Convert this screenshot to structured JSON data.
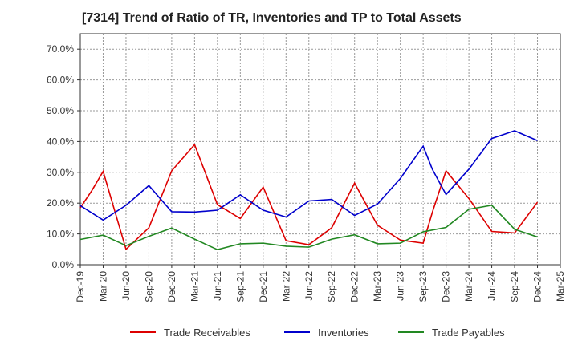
{
  "chart_data": {
    "type": "line",
    "title": "[7314]  Trend of Ratio of TR, Inventories and TP to Total Assets",
    "xlabel": "",
    "ylabel": "",
    "categories": [
      "Dec-19",
      "Mar-20",
      "Jun-20",
      "Sep-20",
      "Dec-20",
      "Mar-21",
      "Jun-21",
      "Sep-21",
      "Dec-21",
      "Mar-22",
      "Jun-22",
      "Sep-22",
      "Dec-22",
      "Mar-23",
      "Jun-23",
      "Sep-23",
      "Dec-23",
      "Mar-24",
      "Jun-24",
      "Sep-24",
      "Dec-24",
      "Mar-25"
    ],
    "ylim": [
      0,
      75
    ],
    "yticks": [
      0,
      10,
      20,
      30,
      40,
      50,
      60,
      70
    ],
    "ytick_labels": [
      "0.0%",
      "10.0%",
      "20.0%",
      "30.0%",
      "40.0%",
      "50.0%",
      "60.0%",
      "70.0%"
    ],
    "grid": true,
    "legend_position": "bottom",
    "series": [
      {
        "name": "Trade Receivables",
        "color": "#dd0000",
        "points": [
          {
            "x": 0,
            "y": 18.5
          },
          {
            "x": 0.5,
            "y": 24.0
          },
          {
            "x": 1,
            "y": 30.3
          },
          {
            "x": 2,
            "y": 5.0
          },
          {
            "x": 3,
            "y": 12.0
          },
          {
            "x": 4,
            "y": 30.5
          },
          {
            "x": 5,
            "y": 39.0
          },
          {
            "x": 6,
            "y": 19.5
          },
          {
            "x": 7,
            "y": 15.0
          },
          {
            "x": 8,
            "y": 25.2
          },
          {
            "x": 9,
            "y": 7.8
          },
          {
            "x": 10,
            "y": 6.5
          },
          {
            "x": 11,
            "y": 12.0
          },
          {
            "x": 12,
            "y": 26.5
          },
          {
            "x": 13,
            "y": 12.8
          },
          {
            "x": 14,
            "y": 8.0
          },
          {
            "x": 15,
            "y": 7.0
          },
          {
            "x": 15.4,
            "y": 17.0
          },
          {
            "x": 16,
            "y": 30.5
          },
          {
            "x": 17,
            "y": 21.5
          },
          {
            "x": 18,
            "y": 10.8
          },
          {
            "x": 19,
            "y": 10.3
          },
          {
            "x": 20,
            "y": 20.3
          }
        ]
      },
      {
        "name": "Inventories",
        "color": "#0000cc",
        "points": [
          {
            "x": 0,
            "y": 19.2
          },
          {
            "x": 1,
            "y": 14.5
          },
          {
            "x": 2,
            "y": 19.3
          },
          {
            "x": 3,
            "y": 25.7
          },
          {
            "x": 4,
            "y": 17.2
          },
          {
            "x": 5,
            "y": 17.1
          },
          {
            "x": 6,
            "y": 17.7
          },
          {
            "x": 7,
            "y": 22.7
          },
          {
            "x": 8,
            "y": 17.7
          },
          {
            "x": 9,
            "y": 15.5
          },
          {
            "x": 10,
            "y": 20.7
          },
          {
            "x": 11,
            "y": 21.2
          },
          {
            "x": 12,
            "y": 16.0
          },
          {
            "x": 13,
            "y": 19.7
          },
          {
            "x": 14,
            "y": 28.0
          },
          {
            "x": 15,
            "y": 38.5
          },
          {
            "x": 15.4,
            "y": 31.0
          },
          {
            "x": 16,
            "y": 22.8
          },
          {
            "x": 17,
            "y": 31.0
          },
          {
            "x": 18,
            "y": 41.0
          },
          {
            "x": 19,
            "y": 43.5
          },
          {
            "x": 20,
            "y": 40.3
          }
        ]
      },
      {
        "name": "Trade Payables",
        "color": "#228822",
        "points": [
          {
            "x": 0,
            "y": 8.2
          },
          {
            "x": 1,
            "y": 9.6
          },
          {
            "x": 2,
            "y": 6.2
          },
          {
            "x": 3,
            "y": 9.2
          },
          {
            "x": 4,
            "y": 11.9
          },
          {
            "x": 5,
            "y": 8.3
          },
          {
            "x": 6,
            "y": 4.9
          },
          {
            "x": 7,
            "y": 6.8
          },
          {
            "x": 8,
            "y": 7.0
          },
          {
            "x": 9,
            "y": 6.0
          },
          {
            "x": 10,
            "y": 5.7
          },
          {
            "x": 11,
            "y": 8.3
          },
          {
            "x": 12,
            "y": 9.7
          },
          {
            "x": 13,
            "y": 6.8
          },
          {
            "x": 14,
            "y": 7.0
          },
          {
            "x": 15,
            "y": 10.7
          },
          {
            "x": 16,
            "y": 12.1
          },
          {
            "x": 17,
            "y": 18.0
          },
          {
            "x": 18,
            "y": 19.3
          },
          {
            "x": 19,
            "y": 11.5
          },
          {
            "x": 20,
            "y": 9.0
          }
        ]
      }
    ]
  }
}
